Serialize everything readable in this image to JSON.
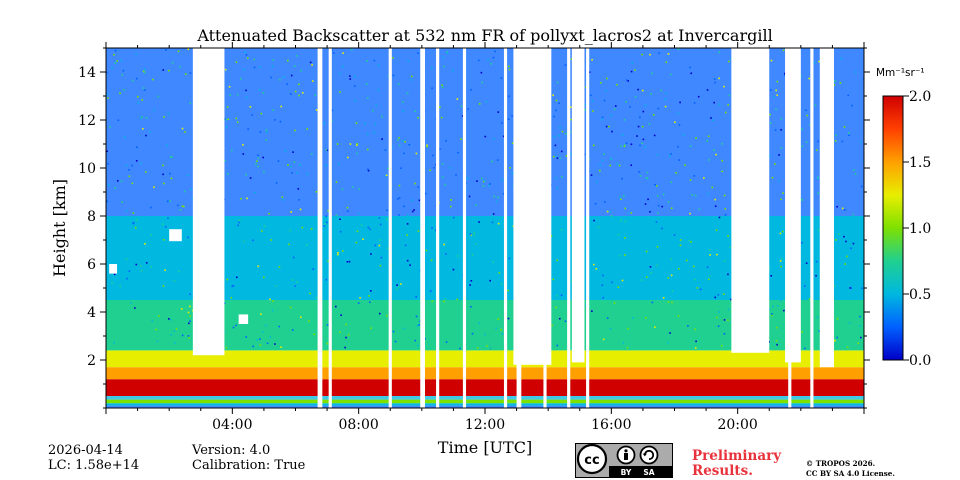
{
  "chart_data": {
    "type": "heatmap",
    "title": "Attenuated Backscatter at 532 nm FR of pollyxt_lacros2 at Invercargill",
    "xlabel": "Time [UTC]",
    "ylabel": "Height [km]",
    "xlim_hours": [
      0,
      24
    ],
    "ylim_km": [
      0,
      15
    ],
    "x_ticks": [
      {
        "value": 4,
        "label": "04:00"
      },
      {
        "value": 8,
        "label": "08:00"
      },
      {
        "value": 12,
        "label": "12:00"
      },
      {
        "value": 16,
        "label": "16:00"
      },
      {
        "value": 20,
        "label": "20:00"
      }
    ],
    "y_ticks": [
      {
        "value": 2,
        "label": "2"
      },
      {
        "value": 4,
        "label": "4"
      },
      {
        "value": 6,
        "label": "6"
      },
      {
        "value": 8,
        "label": "8"
      },
      {
        "value": 10,
        "label": "10"
      },
      {
        "value": 12,
        "label": "12"
      },
      {
        "value": 14,
        "label": "14"
      }
    ],
    "colorbar": {
      "unit_label": "Mm⁻¹sr⁻¹",
      "range": [
        0.0,
        2.0
      ],
      "ticks": [
        {
          "value": 0.0,
          "label": "0.0"
        },
        {
          "value": 0.5,
          "label": "0.5"
        },
        {
          "value": 1.0,
          "label": "1.0"
        },
        {
          "value": 1.5,
          "label": "1.5"
        },
        {
          "value": 2.0,
          "label": "2.0"
        }
      ],
      "colormap": [
        "#0000c8",
        "#0060ff",
        "#00b8e0",
        "#20d090",
        "#7ee000",
        "#e8ee00",
        "#ffa000",
        "#ff4000",
        "#d00000"
      ]
    },
    "profile_bands_km": [
      {
        "bottom": 0.0,
        "top": 0.1,
        "value": 0.2
      },
      {
        "bottom": 0.1,
        "top": 0.2,
        "value": 0.6
      },
      {
        "bottom": 0.2,
        "top": 0.35,
        "value": 1.0
      },
      {
        "bottom": 0.35,
        "top": 0.5,
        "value": 0.4
      },
      {
        "bottom": 0.5,
        "top": 1.2,
        "value": 1.9
      },
      {
        "bottom": 1.2,
        "top": 1.7,
        "value": 1.6
      },
      {
        "bottom": 1.7,
        "top": 2.4,
        "value": 1.2
      },
      {
        "bottom": 2.4,
        "top": 4.5,
        "value": 0.85
      },
      {
        "bottom": 4.5,
        "top": 8.0,
        "value": 0.55
      },
      {
        "bottom": 8.0,
        "top": 15.0,
        "value": 0.3
      }
    ],
    "data_gaps_hours": [
      [
        6.7,
        6.85
      ],
      [
        7.05,
        7.15
      ],
      [
        8.95,
        9.05
      ],
      [
        9.95,
        10.1
      ],
      [
        10.45,
        10.55
      ],
      [
        11.3,
        11.4
      ],
      [
        12.6,
        12.7
      ],
      [
        13.0,
        13.15
      ],
      [
        13.85,
        13.95
      ],
      [
        14.6,
        14.7
      ],
      [
        15.2,
        15.3
      ],
      [
        21.6,
        21.7
      ],
      [
        22.3,
        22.4
      ]
    ],
    "clear_periods_hours": [
      {
        "start": 2.75,
        "end": 3.75,
        "top_km": 2.2
      },
      {
        "start": 12.9,
        "end": 14.1,
        "top_km": 1.8
      },
      {
        "start": 14.75,
        "end": 15.15,
        "top_km": 1.9
      },
      {
        "start": 19.8,
        "end": 21.0,
        "top_km": 2.3
      },
      {
        "start": 21.5,
        "end": 22.0,
        "top_km": 1.9
      },
      {
        "start": 22.6,
        "end": 23.05,
        "top_km": 1.7
      }
    ],
    "cloud_patches": [
      {
        "x_hours": 2.0,
        "y_km": 6.95,
        "width_hours": 0.4,
        "height_km": 0.5
      },
      {
        "x_hours": 4.2,
        "y_km": 3.5,
        "width_hours": 0.3,
        "height_km": 0.4
      },
      {
        "x_hours": 0.1,
        "y_km": 5.6,
        "width_hours": 0.25,
        "height_km": 0.4
      }
    ]
  },
  "footer": {
    "date": "2026-04-14",
    "lc": "LC: 1.58e+14",
    "version": "Version: 4.0",
    "calibration": "Calibration: True",
    "cc_badge": [
      "BY",
      "SA"
    ],
    "preliminary": [
      "Preliminary",
      "Results."
    ],
    "copyright": [
      "© TROPOS 2026.",
      "CC BY SA 4.0 License."
    ]
  }
}
